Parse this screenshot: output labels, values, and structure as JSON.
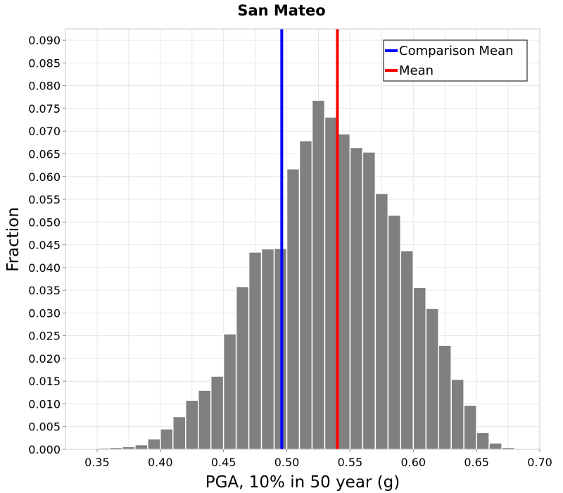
{
  "chart_data": {
    "type": "bar",
    "title": "San Mateo",
    "xlabel": "PGA, 10% in 50 year (g)",
    "ylabel": "Fraction",
    "xlim": [
      0.325,
      0.7
    ],
    "ylim": [
      0.0,
      0.0925
    ],
    "xticks": [
      0.35,
      0.4,
      0.45,
      0.5,
      0.55,
      0.6,
      0.65,
      0.7
    ],
    "xtick_labels": [
      "0.35",
      "0.40",
      "0.45",
      "0.50",
      "0.55",
      "0.60",
      "0.65",
      "0.70"
    ],
    "yticks": [
      0.0,
      0.005,
      0.01,
      0.015,
      0.02,
      0.025,
      0.03,
      0.035,
      0.04,
      0.045,
      0.05,
      0.055,
      0.06,
      0.065,
      0.07,
      0.075,
      0.08,
      0.085,
      0.09
    ],
    "ytick_labels": [
      "0.000",
      "0.005",
      "0.010",
      "0.015",
      "0.020",
      "0.025",
      "0.030",
      "0.035",
      "0.040",
      "0.045",
      "0.050",
      "0.055",
      "0.060",
      "0.065",
      "0.070",
      "0.075",
      "0.080",
      "0.085",
      "0.090"
    ],
    "grid": true,
    "bin_width": 0.01,
    "bins": [
      {
        "x": 0.335,
        "value": 0.0001
      },
      {
        "x": 0.345,
        "value": 0.0002
      },
      {
        "x": 0.355,
        "value": 0.0003
      },
      {
        "x": 0.365,
        "value": 0.0004
      },
      {
        "x": 0.375,
        "value": 0.0006
      },
      {
        "x": 0.385,
        "value": 0.001
      },
      {
        "x": 0.395,
        "value": 0.0023
      },
      {
        "x": 0.405,
        "value": 0.0045
      },
      {
        "x": 0.415,
        "value": 0.0072
      },
      {
        "x": 0.425,
        "value": 0.0108
      },
      {
        "x": 0.435,
        "value": 0.013
      },
      {
        "x": 0.445,
        "value": 0.0161
      },
      {
        "x": 0.455,
        "value": 0.0254
      },
      {
        "x": 0.465,
        "value": 0.0358
      },
      {
        "x": 0.475,
        "value": 0.0434
      },
      {
        "x": 0.485,
        "value": 0.0441
      },
      {
        "x": 0.495,
        "value": 0.0442
      },
      {
        "x": 0.505,
        "value": 0.0617
      },
      {
        "x": 0.515,
        "value": 0.0679
      },
      {
        "x": 0.525,
        "value": 0.0768
      },
      {
        "x": 0.535,
        "value": 0.0731
      },
      {
        "x": 0.545,
        "value": 0.0694
      },
      {
        "x": 0.555,
        "value": 0.0664
      },
      {
        "x": 0.565,
        "value": 0.0654
      },
      {
        "x": 0.575,
        "value": 0.0563
      },
      {
        "x": 0.585,
        "value": 0.0515
      },
      {
        "x": 0.595,
        "value": 0.0437
      },
      {
        "x": 0.605,
        "value": 0.0356
      },
      {
        "x": 0.615,
        "value": 0.031
      },
      {
        "x": 0.625,
        "value": 0.0229
      },
      {
        "x": 0.635,
        "value": 0.0154
      },
      {
        "x": 0.645,
        "value": 0.0097
      },
      {
        "x": 0.655,
        "value": 0.0037
      },
      {
        "x": 0.665,
        "value": 0.0014
      },
      {
        "x": 0.675,
        "value": 0.0004
      },
      {
        "x": 0.685,
        "value": 0.0001
      }
    ],
    "vertical_lines": [
      {
        "name": "Comparison Mean",
        "x": 0.496,
        "color": "#0000ff"
      },
      {
        "name": "Mean",
        "x": 0.54,
        "color": "#ff0000"
      }
    ],
    "legend": {
      "placement": "top-right",
      "entries": [
        {
          "label": "Comparison Mean",
          "color": "#0000ff"
        },
        {
          "label": "Mean",
          "color": "#ff0000"
        }
      ]
    },
    "bar_color": "#808080",
    "bar_edge_color": "#ffffff",
    "grid_color": "#e6e6e6"
  }
}
